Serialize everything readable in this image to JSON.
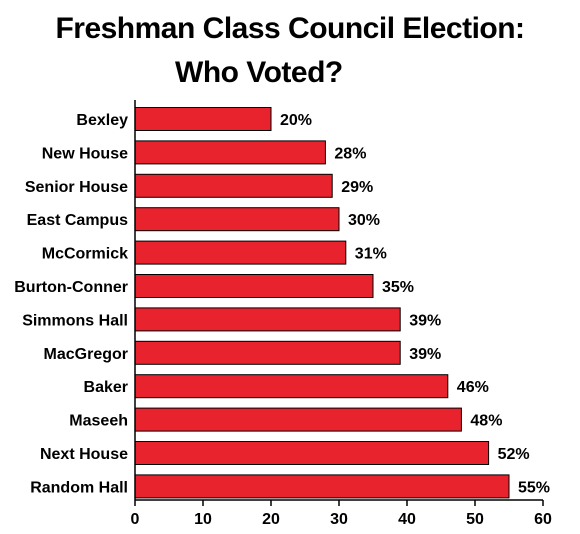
{
  "title_lines": [
    "Freshman Class Council Election:",
    "Who Voted?"
  ],
  "colors": {
    "bar_fill": "#e8232e",
    "bar_stroke": "#000000",
    "text": "#000000"
  },
  "chart_data": {
    "type": "bar",
    "orientation": "horizontal",
    "title": "Freshman Class Council Election: Who Voted?",
    "categories": [
      "Bexley",
      "New House",
      "Senior House",
      "East Campus",
      "McCormick",
      "Burton-Conner",
      "Simmons Hall",
      "MacGregor",
      "Baker",
      "Maseeh",
      "Next House",
      "Random Hall"
    ],
    "values": [
      20,
      28,
      29,
      30,
      31,
      35,
      39,
      39,
      46,
      48,
      52,
      55
    ],
    "data_labels": [
      "20%",
      "28%",
      "29%",
      "30%",
      "31%",
      "35%",
      "39%",
      "39%",
      "46%",
      "48%",
      "52%",
      "55%"
    ],
    "xlim": [
      0,
      60
    ],
    "xticks": [
      0,
      10,
      20,
      30,
      40,
      50,
      60
    ],
    "xlabel": "",
    "ylabel": "",
    "grid": false,
    "legend": "none"
  }
}
